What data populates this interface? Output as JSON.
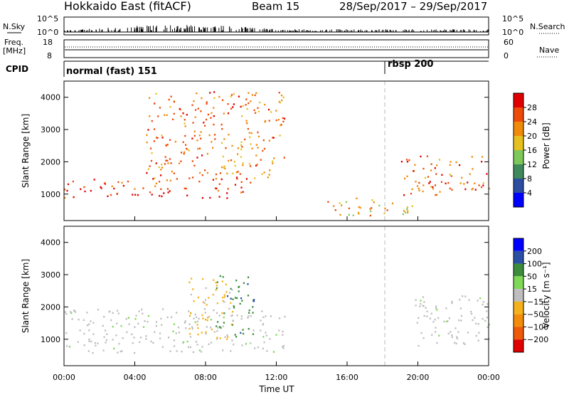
{
  "header": {
    "station": "Hokkaido East (fitACF)",
    "beam": "Beam 15",
    "date_range": "28/Sep/2017 – 29/Sep/2017"
  },
  "summary_panels": {
    "nsky_label": "N.Sky",
    "nsky_ticks": [
      "10^5",
      "10^0"
    ],
    "nsearch_label": "N.Search",
    "freq_label_line1": "Freq.",
    "freq_label_line2": "[MHz]",
    "freq_ticks": [
      "18",
      "8"
    ],
    "nave_ticks": [
      "60",
      "0"
    ],
    "nave_label": "Nave",
    "cpid_label": "CPID",
    "cpid_segments": [
      {
        "name": "normal (fast) 151",
        "start_hour": 0
      },
      {
        "name": "rbsp 200",
        "start_hour": 18
      }
    ]
  },
  "colors": {
    "power_scale": [
      "#0000ff",
      "#2c4da0",
      "#3e8a5a",
      "#7ec85a",
      "#e6c01e",
      "#f08a0a",
      "#ee4a0a",
      "#e00000"
    ],
    "velocity_scale": [
      "#0000ff",
      "#2b4fa5",
      "#3b8d3b",
      "#7ed957",
      "#bebebe",
      "#f5b21b",
      "#f28c0a",
      "#ee5a0a",
      "#e00000"
    ],
    "ground_scatter": "#bebebe"
  },
  "chart_data": [
    {
      "type": "heatmap",
      "title": "Power",
      "ylabel": "Slant Range [km]",
      "xlabel": "Time UT",
      "xlim_hours": [
        0,
        24
      ],
      "ylim": [
        180,
        4500
      ],
      "yticks": [
        "1000",
        "2000",
        "3000",
        "4000"
      ],
      "xticks": [
        "00:00",
        "04:00",
        "08:00",
        "12:00",
        "16:00",
        "20:00",
        "00:00"
      ],
      "colorbar": {
        "label": "Power [dB]",
        "ticks": [
          "28",
          "24",
          "20",
          "16",
          "12",
          "8",
          "4"
        ],
        "range": [
          0,
          30
        ]
      },
      "features": [
        {
          "desc": "main band",
          "hours": [
            0,
            10.5
          ],
          "range_km": [
            900,
            1500
          ],
          "power_db": 26
        },
        {
          "desc": "rising arcs",
          "hours": [
            4.5,
            12.5
          ],
          "range_km": [
            1500,
            4200
          ],
          "power_db": 22
        },
        {
          "desc": "late band",
          "hours": [
            19,
            24
          ],
          "range_km": [
            900,
            2200
          ],
          "power_db": 24
        },
        {
          "desc": "near range echoes",
          "hours": [
            14.5,
            20
          ],
          "range_km": [
            350,
            900
          ],
          "power_db": 18
        }
      ]
    },
    {
      "type": "heatmap",
      "title": "Velocity",
      "ylabel": "Slant Range [km]",
      "xlabel": "Time UT",
      "xlim_hours": [
        0,
        24
      ],
      "ylim": [
        180,
        4500
      ],
      "yticks": [
        "1000",
        "2000",
        "3000",
        "4000"
      ],
      "xticks": [
        "00:00",
        "04:00",
        "08:00",
        "12:00",
        "16:00",
        "20:00",
        "00:00"
      ],
      "colorbar": {
        "label": "Velocity [m s⁻¹]",
        "ticks": [
          "200",
          "100",
          "50",
          "15",
          "−15",
          "−50",
          "−100",
          "−200"
        ],
        "range": [
          -250,
          250
        ]
      },
      "features": [
        {
          "desc": "ground scatter band",
          "hours": [
            0,
            12.5
          ],
          "range_km": [
            600,
            2000
          ],
          "velocity": 0
        },
        {
          "desc": "positive arcs",
          "hours": [
            8.5,
            10.7
          ],
          "range_km": [
            1100,
            3000
          ],
          "velocity": 60
        },
        {
          "desc": "negative arcs",
          "hours": [
            7,
            9.5
          ],
          "range_km": [
            1000,
            3000
          ],
          "velocity": -40
        },
        {
          "desc": "late ground scatter",
          "hours": [
            19.5,
            24
          ],
          "range_km": [
            800,
            2400
          ],
          "velocity": 0
        }
      ]
    }
  ]
}
